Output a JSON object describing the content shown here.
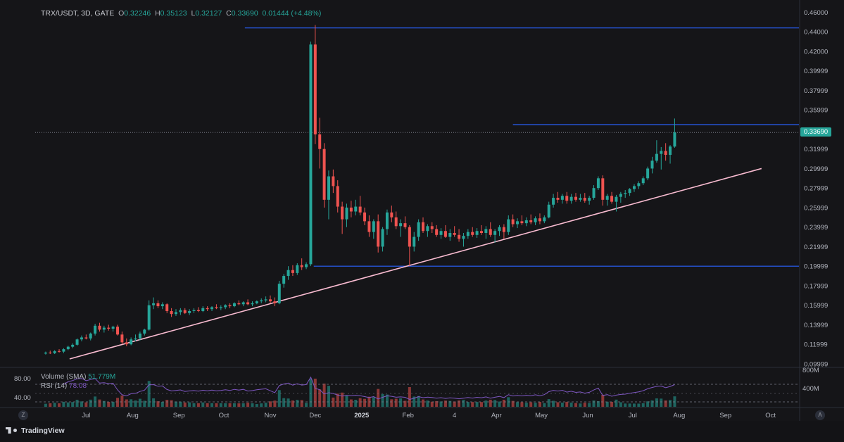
{
  "header": {
    "symbol": "TRX/USDT, 3D, GATE",
    "open_label": "O",
    "open": "0.32246",
    "high_label": "H",
    "high": "0.35123",
    "low_label": "L",
    "low": "0.32127",
    "close_label": "C",
    "close": "0.33690",
    "change": "0.01444 (+4.48%)"
  },
  "volume_label": {
    "text": "Volume (SMA)",
    "value": "51.779M"
  },
  "rsi_label": {
    "text": "RSI (14)",
    "value": "78.08"
  },
  "current_price_tag": "0.33690",
  "branding": "TradingView",
  "nav": {
    "left": "Z",
    "right": "A"
  },
  "colors": {
    "up": "#26a69a",
    "down": "#ef5350",
    "hline": "#2962ff",
    "trendline": "#f8bbd0",
    "rsi": "#7e57c2",
    "background": "#151518"
  },
  "chart_data": {
    "type": "candlestick",
    "y_axis_ticks": [
      "0.46000",
      "0.44000",
      "0.42000",
      "0.39999",
      "0.37999",
      "0.35999",
      "0.33999",
      "0.31999",
      "0.29999",
      "0.27999",
      "0.25999",
      "0.23999",
      "0.21999",
      "0.19999",
      "0.17999",
      "0.15999",
      "0.13999",
      "0.11999",
      "0.09999"
    ],
    "ylim": [
      0.0985,
      0.4625
    ],
    "x_axis_labels": [
      "Jul",
      "Aug",
      "Sep",
      "Oct",
      "Nov",
      "Dec",
      "2025",
      "Feb",
      "4",
      "Apr",
      "May",
      "Jun",
      "Jul",
      "Aug",
      "Sep",
      "Oct"
    ],
    "x_axis_label_positions": [
      "2024-07-01",
      "2024-08-01",
      "2024-09-01",
      "2024-10-01",
      "2024-11-01",
      "2024-12-01",
      "2025-01-01",
      "2025-02-01",
      "2025-03-04",
      "2025-04-01",
      "2025-05-01",
      "2025-06-01",
      "2025-07-01",
      "2025-08-01",
      "2025-09-01",
      "2025-10-01"
    ],
    "date_range": [
      "2024-05-28",
      "2025-10-20"
    ],
    "candles": [
      [
        "2024-06-04",
        0.1105,
        0.1125,
        0.1095,
        0.1115
      ],
      [
        "2024-06-07",
        0.1115,
        0.1135,
        0.11,
        0.1108
      ],
      [
        "2024-06-10",
        0.1108,
        0.114,
        0.11,
        0.113
      ],
      [
        "2024-06-13",
        0.113,
        0.115,
        0.1115,
        0.1125
      ],
      [
        "2024-06-16",
        0.1125,
        0.116,
        0.111,
        0.115
      ],
      [
        "2024-06-19",
        0.115,
        0.1185,
        0.114,
        0.1175
      ],
      [
        "2024-06-22",
        0.1175,
        0.121,
        0.116,
        0.1195
      ],
      [
        "2024-06-25",
        0.1195,
        0.126,
        0.1185,
        0.125
      ],
      [
        "2024-06-28",
        0.125,
        0.129,
        0.123,
        0.127
      ],
      [
        "2024-07-01",
        0.127,
        0.13,
        0.125,
        0.126
      ],
      [
        "2024-07-04",
        0.126,
        0.132,
        0.124,
        0.131
      ],
      [
        "2024-07-07",
        0.131,
        0.141,
        0.129,
        0.139
      ],
      [
        "2024-07-10",
        0.139,
        0.142,
        0.133,
        0.135
      ],
      [
        "2024-07-13",
        0.135,
        0.139,
        0.132,
        0.137
      ],
      [
        "2024-07-16",
        0.137,
        0.14,
        0.134,
        0.136
      ],
      [
        "2024-07-19",
        0.136,
        0.139,
        0.133,
        0.138
      ],
      [
        "2024-07-22",
        0.138,
        0.14,
        0.129,
        0.13
      ],
      [
        "2024-07-25",
        0.13,
        0.133,
        0.12,
        0.122
      ],
      [
        "2024-07-28",
        0.122,
        0.126,
        0.118,
        0.12
      ],
      [
        "2024-07-31",
        0.12,
        0.127,
        0.119,
        0.125
      ],
      [
        "2024-08-03",
        0.125,
        0.13,
        0.123,
        0.126
      ],
      [
        "2024-08-06",
        0.126,
        0.133,
        0.124,
        0.131
      ],
      [
        "2024-08-09",
        0.131,
        0.136,
        0.129,
        0.135
      ],
      [
        "2024-08-12",
        0.135,
        0.165,
        0.134,
        0.16
      ],
      [
        "2024-08-15",
        0.16,
        0.168,
        0.156,
        0.162
      ],
      [
        "2024-08-18",
        0.162,
        0.165,
        0.157,
        0.159
      ],
      [
        "2024-08-21",
        0.159,
        0.163,
        0.156,
        0.161
      ],
      [
        "2024-08-24",
        0.161,
        0.162,
        0.152,
        0.154
      ],
      [
        "2024-08-27",
        0.154,
        0.157,
        0.148,
        0.151
      ],
      [
        "2024-08-30",
        0.151,
        0.156,
        0.149,
        0.153
      ],
      [
        "2024-09-02",
        0.153,
        0.157,
        0.15,
        0.155
      ],
      [
        "2024-09-05",
        0.155,
        0.157,
        0.151,
        0.152
      ],
      [
        "2024-09-08",
        0.152,
        0.156,
        0.15,
        0.154
      ],
      [
        "2024-09-11",
        0.154,
        0.157,
        0.152,
        0.155
      ],
      [
        "2024-09-14",
        0.155,
        0.158,
        0.153,
        0.154
      ],
      [
        "2024-09-17",
        0.154,
        0.159,
        0.153,
        0.157
      ],
      [
        "2024-09-20",
        0.157,
        0.159,
        0.154,
        0.156
      ],
      [
        "2024-09-23",
        0.156,
        0.159,
        0.154,
        0.158
      ],
      [
        "2024-09-26",
        0.158,
        0.161,
        0.156,
        0.157
      ],
      [
        "2024-09-29",
        0.157,
        0.16,
        0.155,
        0.158
      ],
      [
        "2024-10-02",
        0.158,
        0.161,
        0.156,
        0.16
      ],
      [
        "2024-10-05",
        0.16,
        0.162,
        0.157,
        0.159
      ],
      [
        "2024-10-08",
        0.159,
        0.163,
        0.158,
        0.162
      ],
      [
        "2024-10-11",
        0.162,
        0.165,
        0.16,
        0.161
      ],
      [
        "2024-10-14",
        0.161,
        0.164,
        0.159,
        0.163
      ],
      [
        "2024-10-17",
        0.163,
        0.166,
        0.16,
        0.161
      ],
      [
        "2024-10-20",
        0.161,
        0.164,
        0.159,
        0.162
      ],
      [
        "2024-10-23",
        0.162,
        0.165,
        0.161,
        0.164
      ],
      [
        "2024-10-26",
        0.164,
        0.167,
        0.162,
        0.165
      ],
      [
        "2024-10-29",
        0.165,
        0.169,
        0.163,
        0.166
      ],
      [
        "2024-11-01",
        0.166,
        0.17,
        0.162,
        0.164
      ],
      [
        "2024-11-04",
        0.164,
        0.168,
        0.159,
        0.162
      ],
      [
        "2024-11-07",
        0.162,
        0.185,
        0.161,
        0.182
      ],
      [
        "2024-11-10",
        0.182,
        0.192,
        0.178,
        0.19
      ],
      [
        "2024-11-13",
        0.19,
        0.2,
        0.186,
        0.196
      ],
      [
        "2024-11-16",
        0.196,
        0.201,
        0.19,
        0.193
      ],
      [
        "2024-11-19",
        0.193,
        0.203,
        0.191,
        0.201
      ],
      [
        "2024-11-22",
        0.201,
        0.208,
        0.196,
        0.199
      ],
      [
        "2024-11-25",
        0.199,
        0.204,
        0.197,
        0.202
      ],
      [
        "2024-11-28",
        0.202,
        0.43,
        0.2,
        0.427
      ],
      [
        "2024-12-01",
        0.427,
        0.447,
        0.325,
        0.335
      ],
      [
        "2024-12-04",
        0.335,
        0.352,
        0.3,
        0.32
      ],
      [
        "2024-12-07",
        0.32,
        0.326,
        0.26,
        0.268
      ],
      [
        "2024-12-10",
        0.268,
        0.298,
        0.248,
        0.292
      ],
      [
        "2024-12-13",
        0.292,
        0.299,
        0.275,
        0.282
      ],
      [
        "2024-12-16",
        0.282,
        0.288,
        0.255,
        0.261
      ],
      [
        "2024-12-19",
        0.261,
        0.266,
        0.233,
        0.248
      ],
      [
        "2024-12-22",
        0.248,
        0.264,
        0.24,
        0.26
      ],
      [
        "2024-12-25",
        0.26,
        0.267,
        0.25,
        0.256
      ],
      [
        "2024-12-28",
        0.256,
        0.268,
        0.252,
        0.261
      ],
      [
        "2024-12-31",
        0.261,
        0.272,
        0.252,
        0.255
      ],
      [
        "2025-01-03",
        0.255,
        0.26,
        0.242,
        0.246
      ],
      [
        "2025-01-06",
        0.246,
        0.252,
        0.23,
        0.235
      ],
      [
        "2025-01-09",
        0.235,
        0.248,
        0.228,
        0.246
      ],
      [
        "2025-01-12",
        0.246,
        0.253,
        0.214,
        0.22
      ],
      [
        "2025-01-15",
        0.22,
        0.24,
        0.215,
        0.238
      ],
      [
        "2025-01-18",
        0.238,
        0.258,
        0.232,
        0.255
      ],
      [
        "2025-01-21",
        0.255,
        0.262,
        0.245,
        0.25
      ],
      [
        "2025-01-24",
        0.25,
        0.256,
        0.238,
        0.241
      ],
      [
        "2025-01-27",
        0.241,
        0.248,
        0.23,
        0.244
      ],
      [
        "2025-01-30",
        0.244,
        0.251,
        0.238,
        0.24
      ],
      [
        "2025-02-02",
        0.24,
        0.242,
        0.2,
        0.22
      ],
      [
        "2025-02-05",
        0.22,
        0.235,
        0.215,
        0.23
      ],
      [
        "2025-02-08",
        0.23,
        0.248,
        0.226,
        0.245
      ],
      [
        "2025-02-11",
        0.245,
        0.25,
        0.234,
        0.236
      ],
      [
        "2025-02-14",
        0.236,
        0.243,
        0.23,
        0.241
      ],
      [
        "2025-02-17",
        0.241,
        0.245,
        0.234,
        0.238
      ],
      [
        "2025-02-20",
        0.238,
        0.242,
        0.23,
        0.232
      ],
      [
        "2025-02-23",
        0.232,
        0.239,
        0.228,
        0.236
      ],
      [
        "2025-02-26",
        0.236,
        0.242,
        0.229,
        0.23
      ],
      [
        "2025-03-01",
        0.23,
        0.238,
        0.226,
        0.234
      ],
      [
        "2025-03-04",
        0.234,
        0.241,
        0.23,
        0.232
      ],
      [
        "2025-03-07",
        0.232,
        0.238,
        0.225,
        0.228
      ],
      [
        "2025-03-10",
        0.228,
        0.234,
        0.22,
        0.231
      ],
      [
        "2025-03-13",
        0.231,
        0.238,
        0.228,
        0.235
      ],
      [
        "2025-03-16",
        0.235,
        0.24,
        0.23,
        0.232
      ],
      [
        "2025-03-19",
        0.232,
        0.239,
        0.229,
        0.236
      ],
      [
        "2025-03-22",
        0.236,
        0.242,
        0.232,
        0.234
      ],
      [
        "2025-03-25",
        0.234,
        0.241,
        0.228,
        0.238
      ],
      [
        "2025-03-28",
        0.238,
        0.245,
        0.23,
        0.232
      ],
      [
        "2025-03-31",
        0.232,
        0.238,
        0.224,
        0.236
      ],
      [
        "2025-04-03",
        0.236,
        0.242,
        0.231,
        0.24
      ],
      [
        "2025-04-06",
        0.24,
        0.243,
        0.228,
        0.235
      ],
      [
        "2025-04-09",
        0.235,
        0.252,
        0.232,
        0.248
      ],
      [
        "2025-04-12",
        0.248,
        0.253,
        0.24,
        0.243
      ],
      [
        "2025-04-15",
        0.243,
        0.249,
        0.239,
        0.246
      ],
      [
        "2025-04-18",
        0.246,
        0.252,
        0.242,
        0.244
      ],
      [
        "2025-04-21",
        0.244,
        0.25,
        0.241,
        0.247
      ],
      [
        "2025-04-24",
        0.247,
        0.253,
        0.243,
        0.245
      ],
      [
        "2025-04-27",
        0.245,
        0.251,
        0.242,
        0.249
      ],
      [
        "2025-04-30",
        0.249,
        0.254,
        0.243,
        0.246
      ],
      [
        "2025-05-03",
        0.246,
        0.252,
        0.244,
        0.25
      ],
      [
        "2025-05-06",
        0.25,
        0.266,
        0.249,
        0.263
      ],
      [
        "2025-05-09",
        0.263,
        0.274,
        0.26,
        0.27
      ],
      [
        "2025-05-12",
        0.27,
        0.276,
        0.265,
        0.268
      ],
      [
        "2025-05-15",
        0.268,
        0.274,
        0.264,
        0.272
      ],
      [
        "2025-05-18",
        0.272,
        0.276,
        0.264,
        0.267
      ],
      [
        "2025-05-21",
        0.267,
        0.274,
        0.264,
        0.271
      ],
      [
        "2025-05-24",
        0.271,
        0.275,
        0.266,
        0.268
      ],
      [
        "2025-05-27",
        0.268,
        0.274,
        0.266,
        0.27
      ],
      [
        "2025-05-30",
        0.27,
        0.275,
        0.265,
        0.267
      ],
      [
        "2025-06-02",
        0.267,
        0.272,
        0.263,
        0.27
      ],
      [
        "2025-06-05",
        0.27,
        0.283,
        0.268,
        0.28
      ],
      [
        "2025-06-08",
        0.28,
        0.292,
        0.278,
        0.29
      ],
      [
        "2025-06-11",
        0.29,
        0.293,
        0.262,
        0.268
      ],
      [
        "2025-06-14",
        0.268,
        0.274,
        0.262,
        0.272
      ],
      [
        "2025-06-17",
        0.272,
        0.276,
        0.264,
        0.266
      ],
      [
        "2025-06-20",
        0.266,
        0.273,
        0.256,
        0.271
      ],
      [
        "2025-06-23",
        0.271,
        0.276,
        0.265,
        0.274
      ],
      [
        "2025-06-26",
        0.274,
        0.278,
        0.27,
        0.275
      ],
      [
        "2025-06-29",
        0.275,
        0.28,
        0.272,
        0.279
      ],
      [
        "2025-07-02",
        0.279,
        0.284,
        0.276,
        0.282
      ],
      [
        "2025-07-05",
        0.282,
        0.287,
        0.279,
        0.285
      ],
      [
        "2025-07-08",
        0.285,
        0.292,
        0.283,
        0.29
      ],
      [
        "2025-07-11",
        0.29,
        0.302,
        0.288,
        0.3
      ],
      [
        "2025-07-14",
        0.3,
        0.312,
        0.295,
        0.308
      ],
      [
        "2025-07-17",
        0.308,
        0.329,
        0.306,
        0.315
      ],
      [
        "2025-07-20",
        0.315,
        0.322,
        0.299,
        0.318
      ],
      [
        "2025-07-23",
        0.318,
        0.326,
        0.308,
        0.314
      ],
      [
        "2025-07-26",
        0.314,
        0.324,
        0.305,
        0.3225
      ],
      [
        "2025-07-29",
        0.32246,
        0.35123,
        0.32127,
        0.3369
      ]
    ],
    "horizontal_lines": [
      {
        "price": 0.444,
        "from": "2024-10-15",
        "to": "2025-10-20"
      },
      {
        "price": 0.3449,
        "from": "2025-04-12",
        "to": "2025-10-20"
      },
      {
        "price": 0.2,
        "from": "2024-11-30",
        "to": "2025-10-20"
      }
    ],
    "trendline": {
      "from": [
        "2024-06-20",
        0.105
      ],
      "to": [
        "2025-09-25",
        0.3
      ]
    },
    "current_price": 0.3369,
    "volume": {
      "label": "Volume (SMA)",
      "last_value": "51.779M",
      "axis_ticks": [
        "800M",
        "400M"
      ]
    },
    "rsi": {
      "label": "RSI (14)",
      "last_value": "78.08",
      "bands": [
        "80.00",
        "40.00"
      ]
    }
  }
}
